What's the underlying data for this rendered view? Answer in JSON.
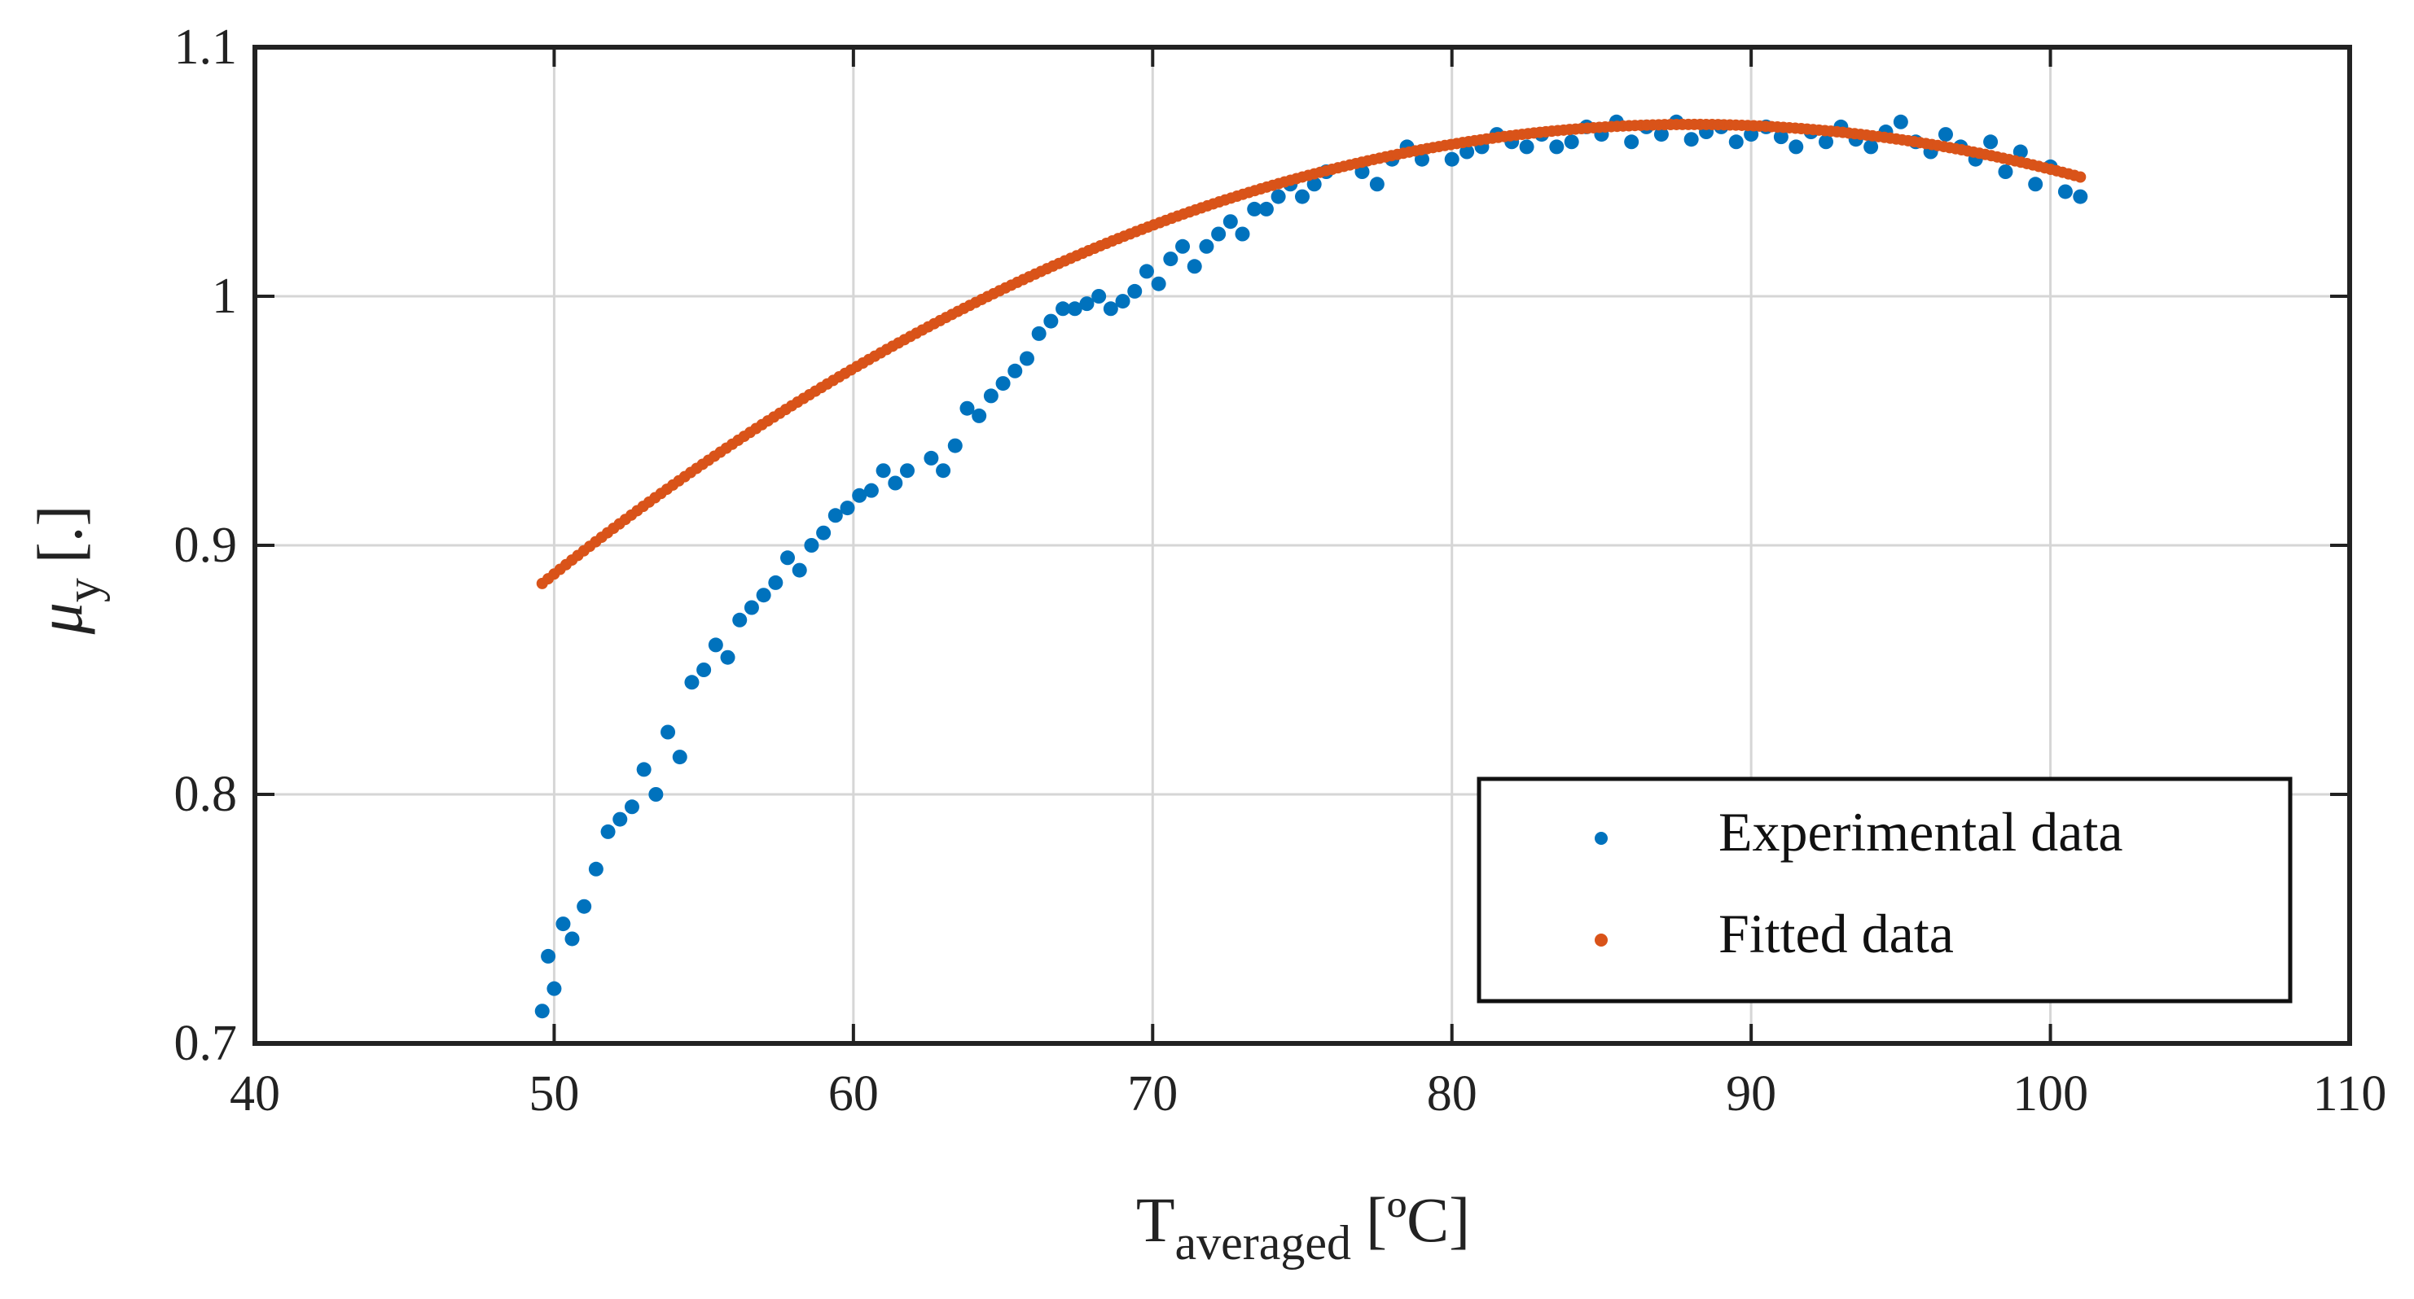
{
  "chart_data": {
    "type": "scatter",
    "xlabel": {
      "main": "T",
      "sub": "averaged",
      "unit": "[ºC]"
    },
    "ylabel": {
      "main": "μ",
      "sub": "y",
      "unit": "[.]"
    },
    "xlim": [
      40,
      110
    ],
    "ylim": [
      0.7,
      1.1
    ],
    "xticks": [
      40,
      50,
      60,
      70,
      80,
      90,
      100,
      110
    ],
    "yticks": [
      0.7,
      0.8,
      0.9,
      1.0,
      1.1
    ],
    "xtick_labels": [
      "40",
      "50",
      "60",
      "70",
      "80",
      "90",
      "100",
      "110"
    ],
    "ytick_labels": [
      "0.7",
      "0.8",
      "0.9",
      "1",
      "1.1"
    ],
    "grid": true,
    "legend_position": "bottom-right",
    "series": [
      {
        "name": "Experimental data",
        "color": "#0072BD",
        "x": [
          49.6,
          49.8,
          50.0,
          50.3,
          50.6,
          51.0,
          51.4,
          51.8,
          52.2,
          52.6,
          53.0,
          53.4,
          53.8,
          54.2,
          54.6,
          55.0,
          55.4,
          55.8,
          56.2,
          56.6,
          57.0,
          57.4,
          57.8,
          58.2,
          58.6,
          59.0,
          59.4,
          59.8,
          60.2,
          60.6,
          61.0,
          61.4,
          61.8,
          62.6,
          63.0,
          63.4,
          63.8,
          64.2,
          64.6,
          65.0,
          65.4,
          65.8,
          66.2,
          66.6,
          67.0,
          67.4,
          67.8,
          68.2,
          68.6,
          69.0,
          69.4,
          69.8,
          70.2,
          70.6,
          71.0,
          71.4,
          71.8,
          72.2,
          72.6,
          73.0,
          73.4,
          73.8,
          74.2,
          74.6,
          75.0,
          75.4,
          75.8,
          77.0,
          77.5,
          78.0,
          78.5,
          79.0,
          80.0,
          80.5,
          81.0,
          81.5,
          82.0,
          82.5,
          83.0,
          83.5,
          84.0,
          84.5,
          85.0,
          85.5,
          86.0,
          86.5,
          87.0,
          87.5,
          88.0,
          88.5,
          89.0,
          89.5,
          90.0,
          90.5,
          91.0,
          91.5,
          92.0,
          92.5,
          93.0,
          93.5,
          94.0,
          94.5,
          95.0,
          95.5,
          96.0,
          96.5,
          97.0,
          97.5,
          98.0,
          98.5,
          99.0,
          99.5,
          100.0,
          100.5,
          101.0
        ],
        "y": [
          0.713,
          0.735,
          0.722,
          0.748,
          0.742,
          0.755,
          0.77,
          0.785,
          0.79,
          0.795,
          0.81,
          0.8,
          0.825,
          0.815,
          0.845,
          0.85,
          0.86,
          0.855,
          0.87,
          0.875,
          0.88,
          0.885,
          0.895,
          0.89,
          0.9,
          0.905,
          0.912,
          0.915,
          0.92,
          0.922,
          0.93,
          0.925,
          0.93,
          0.935,
          0.93,
          0.94,
          0.955,
          0.952,
          0.96,
          0.965,
          0.97,
          0.975,
          0.985,
          0.99,
          0.995,
          0.995,
          0.997,
          1.0,
          0.995,
          0.998,
          1.002,
          1.01,
          1.005,
          1.015,
          1.02,
          1.012,
          1.02,
          1.025,
          1.03,
          1.025,
          1.035,
          1.035,
          1.04,
          1.045,
          1.04,
          1.045,
          1.05,
          1.05,
          1.045,
          1.055,
          1.06,
          1.055,
          1.055,
          1.058,
          1.06,
          1.065,
          1.062,
          1.06,
          1.065,
          1.06,
          1.062,
          1.068,
          1.065,
          1.07,
          1.062,
          1.068,
          1.065,
          1.07,
          1.063,
          1.066,
          1.068,
          1.062,
          1.065,
          1.068,
          1.064,
          1.06,
          1.066,
          1.062,
          1.068,
          1.063,
          1.06,
          1.066,
          1.07,
          1.062,
          1.058,
          1.065,
          1.06,
          1.055,
          1.062,
          1.05,
          1.058,
          1.045,
          1.052,
          1.042,
          1.04
        ]
      },
      {
        "name": "Fitted data",
        "color": "#D95319",
        "model": "quadratic",
        "coefficients": {
          "a": -0.000125,
          "x_peak": 88.0,
          "y_peak": 1.069
        },
        "x_range": [
          49.6,
          101.0
        ],
        "n_points": 260
      }
    ]
  }
}
